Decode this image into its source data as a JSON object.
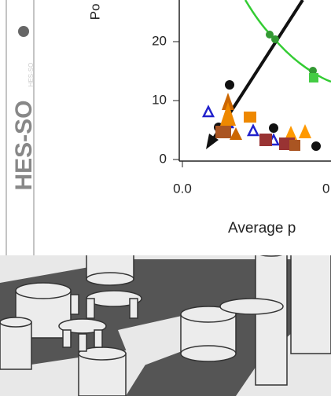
{
  "logo": {
    "text": "HES-SO",
    "watermark": "HES-SO"
  },
  "figure": {
    "y_axis_label": "Po",
    "y_tick_labels": [
      "20",
      "10",
      "0"
    ],
    "x_tick_labels": [
      "0.0",
      "0"
    ],
    "x_axis_label": "Average p"
  }
}
